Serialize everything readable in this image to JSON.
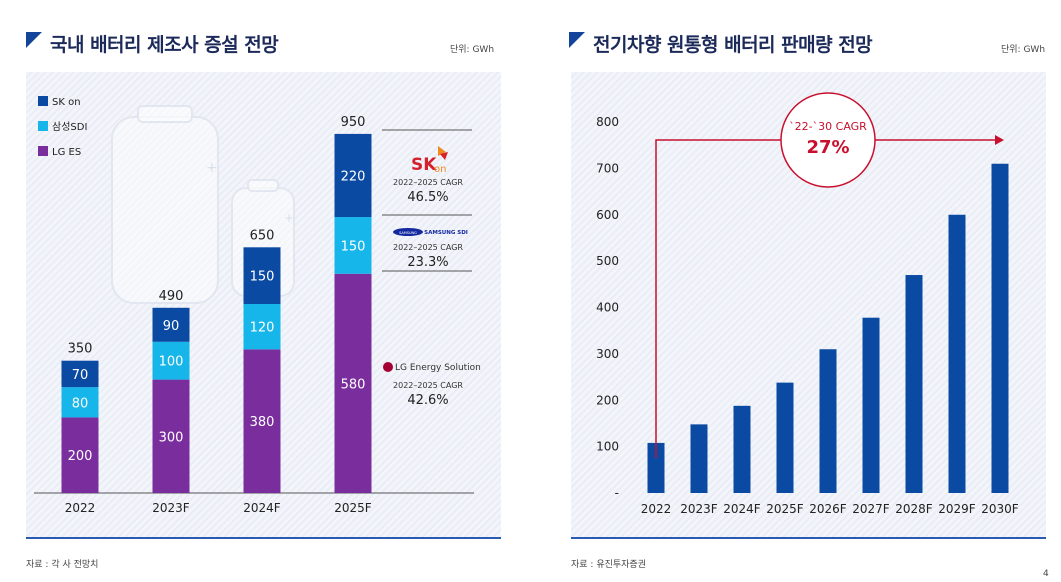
{
  "left": {
    "title": "국내 배터리 제조사 증설 전망",
    "unit": "단위: GWh",
    "source": "자료 : 각 사 전망치"
  },
  "right": {
    "title": "전기차향 원통형 배터리 판매량 전망",
    "unit": "단위: GWh",
    "source": "자료 : 유진투자증권"
  },
  "page_number": "4",
  "colors": {
    "sk": "#0b4aa2",
    "samsung": "#16b5ea",
    "lg": "#7a2e9e",
    "accent_red": "#c8102e",
    "right_bar": "#0b4aa2"
  },
  "chart_data": [
    {
      "type": "bar",
      "stacked": true,
      "categories": [
        "2022",
        "2023F",
        "2024F",
        "2025F"
      ],
      "series": [
        {
          "name": "LG ES",
          "values": [
            200,
            300,
            380,
            580
          ]
        },
        {
          "name": "삼성SDI",
          "values": [
            80,
            100,
            120,
            150
          ]
        },
        {
          "name": "SK on",
          "values": [
            70,
            90,
            150,
            220
          ]
        }
      ],
      "totals": [
        "350",
        "490",
        "650",
        "950"
      ],
      "legend_position": "top-left",
      "annotations": [
        {
          "brand": "SK on",
          "logo_text": "SK",
          "logo_sub": "on",
          "label": "2022–2025 CAGR",
          "value": "46.5%"
        },
        {
          "brand": "Samsung SDI",
          "logo_text": "SAMSUNG",
          "logo_sub": "SAMSUNG SDI",
          "label": "2022–2025 CAGR",
          "value": "23.3%"
        },
        {
          "brand": "LG Energy Solution",
          "logo_text": "LG Energy Solution",
          "label": "2022–2025 CAGR",
          "value": "42.6%"
        }
      ]
    },
    {
      "type": "bar",
      "categories": [
        "2022",
        "2023F",
        "2024F",
        "2025F",
        "2026F",
        "2027F",
        "2028F",
        "2029F",
        "2030F"
      ],
      "values": [
        108,
        148,
        188,
        238,
        310,
        378,
        470,
        600,
        710
      ],
      "ylim": [
        0,
        800
      ],
      "yticks": [
        "-",
        "100",
        "200",
        "300",
        "400",
        "500",
        "600",
        "700",
        "800"
      ],
      "grid": false,
      "cagr_label": "`22-`30 CAGR",
      "cagr_value": "27%"
    }
  ]
}
